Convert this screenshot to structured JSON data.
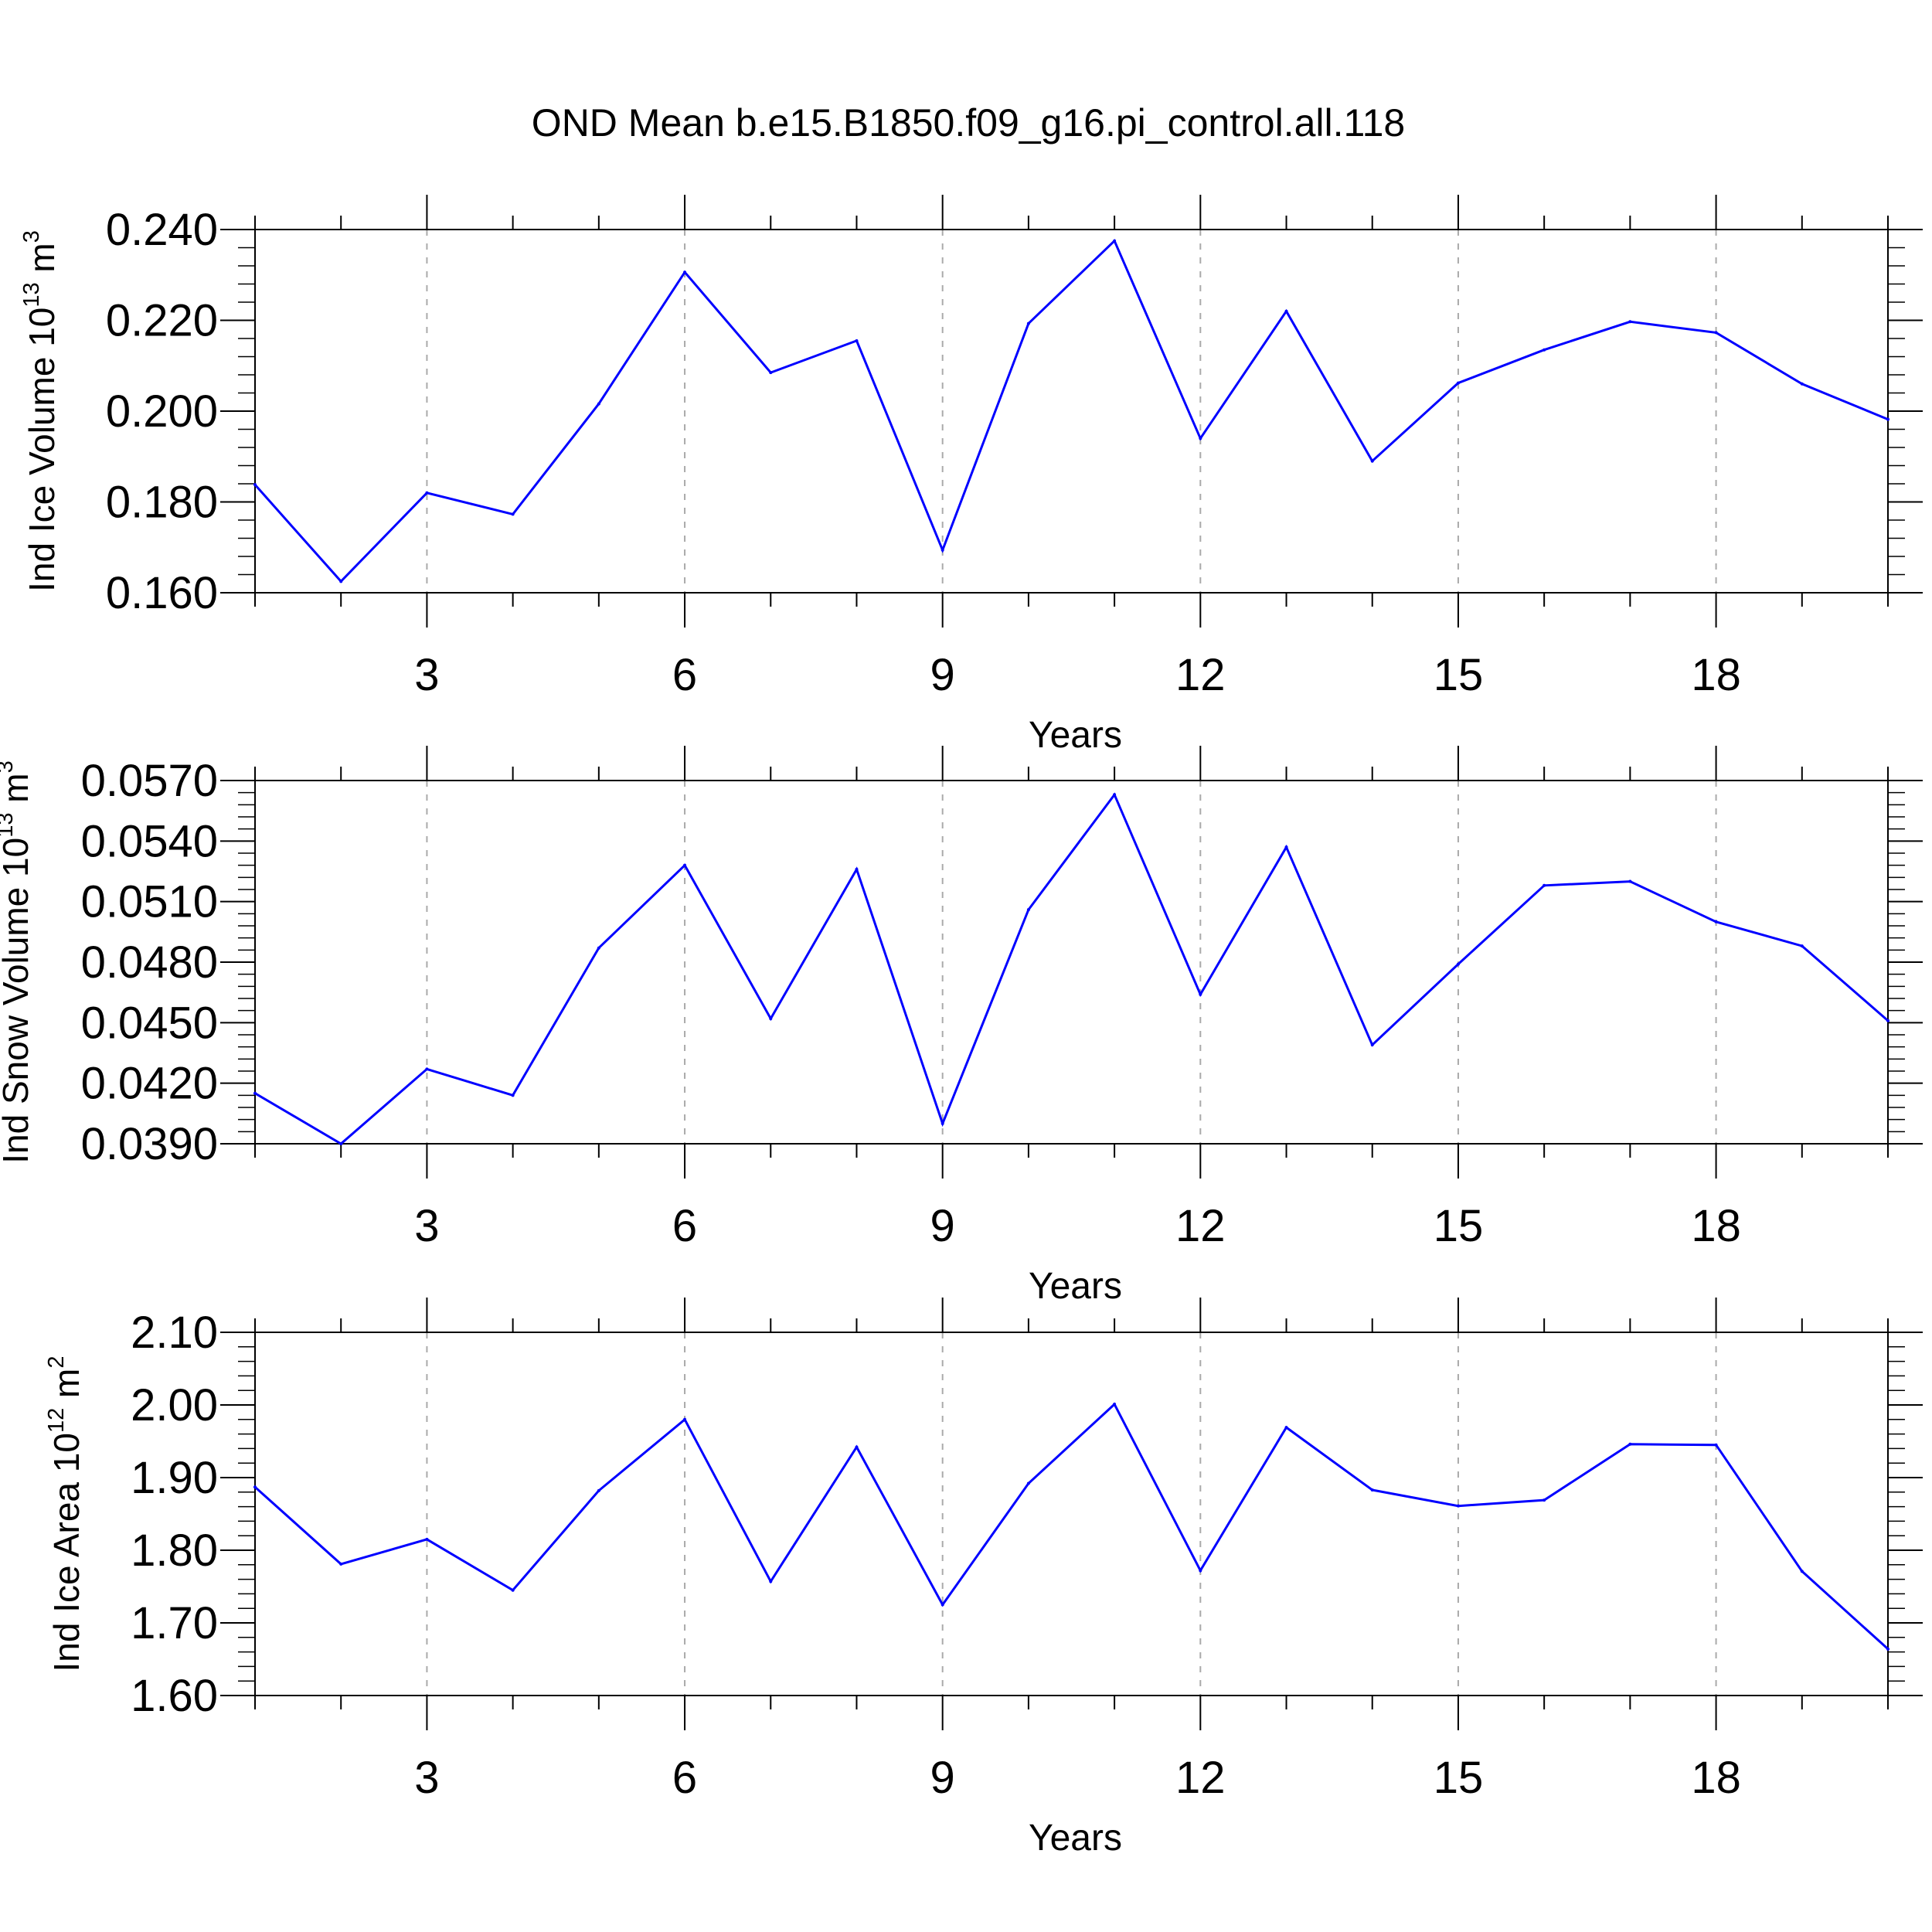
{
  "title": "OND Mean b.e15.B1850.f09_g16.pi_control.all.118",
  "colors": {
    "line": "#0000ff",
    "axis": "#000000",
    "grid": "#aaaaaa"
  },
  "chart_data": [
    {
      "type": "line",
      "xlabel": "Years",
      "ylabel": {
        "prefix": "Ind Ice Volume 10",
        "exponent": "13",
        "unit": "m",
        "unit_exponent": "3"
      },
      "xlim": [
        1,
        20
      ],
      "ylim": [
        0.16,
        0.24
      ],
      "xticks": [
        3,
        6,
        9,
        12,
        15,
        18
      ],
      "yticks": [
        "0.160",
        "0.180",
        "0.200",
        "0.220",
        "0.240"
      ],
      "grid": "vertical dashed at major x ticks",
      "x": [
        1,
        2,
        3,
        4,
        5,
        6,
        7,
        8,
        9,
        10,
        11,
        12,
        13,
        14,
        15,
        16,
        17,
        18,
        19,
        20
      ],
      "series": [
        {
          "values": [
            0.1838,
            0.1625,
            0.182,
            0.1773,
            0.2016,
            0.2306,
            0.2085,
            0.2155,
            0.1694,
            0.2193,
            0.2375,
            0.194,
            0.222,
            0.189,
            0.2062,
            0.2135,
            0.2197,
            0.2173,
            0.206,
            0.1982
          ]
        }
      ]
    },
    {
      "type": "line",
      "xlabel": "Years",
      "ylabel": {
        "prefix": "Ind Snow Volume 10",
        "exponent": "13",
        "unit": "m",
        "unit_exponent": "3"
      },
      "xlim": [
        1,
        20
      ],
      "ylim": [
        0.039,
        0.057
      ],
      "xticks": [
        3,
        6,
        9,
        12,
        15,
        18
      ],
      "yticks": [
        "0.0390",
        "0.0420",
        "0.0450",
        "0.0480",
        "0.0510",
        "0.0540",
        "0.0570"
      ],
      "grid": "vertical dashed at major x ticks",
      "x": [
        1,
        2,
        3,
        4,
        5,
        6,
        7,
        8,
        9,
        10,
        11,
        12,
        13,
        14,
        15,
        16,
        17,
        18,
        19,
        20
      ],
      "series": [
        {
          "values": [
            0.0415,
            0.039,
            0.0427,
            0.0414,
            0.0487,
            0.0528,
            0.0452,
            0.0526,
            0.04,
            0.0506,
            0.0563,
            0.0464,
            0.0537,
            0.0439,
            0.0479,
            0.0518,
            0.052,
            0.05,
            0.0488,
            0.0451
          ]
        }
      ]
    },
    {
      "type": "line",
      "xlabel": "Years",
      "ylabel": {
        "prefix": "Ind Ice Area 10",
        "exponent": "12",
        "unit": "m",
        "unit_exponent": "2"
      },
      "xlim": [
        1,
        20
      ],
      "ylim": [
        1.6,
        2.1
      ],
      "xticks": [
        3,
        6,
        9,
        12,
        15,
        18
      ],
      "yticks": [
        "1.60",
        "1.70",
        "1.80",
        "1.90",
        "2.00",
        "2.10"
      ],
      "grid": "vertical dashed at major x ticks",
      "x": [
        1,
        2,
        3,
        4,
        5,
        6,
        7,
        8,
        9,
        10,
        11,
        12,
        13,
        14,
        15,
        16,
        17,
        18,
        19,
        20
      ],
      "series": [
        {
          "values": [
            1.887,
            1.781,
            1.815,
            1.745,
            1.882,
            1.98,
            1.757,
            1.942,
            1.725,
            1.892,
            2.001,
            1.772,
            1.969,
            1.883,
            1.861,
            1.869,
            1.946,
            1.945,
            1.771,
            1.664
          ]
        }
      ]
    }
  ]
}
